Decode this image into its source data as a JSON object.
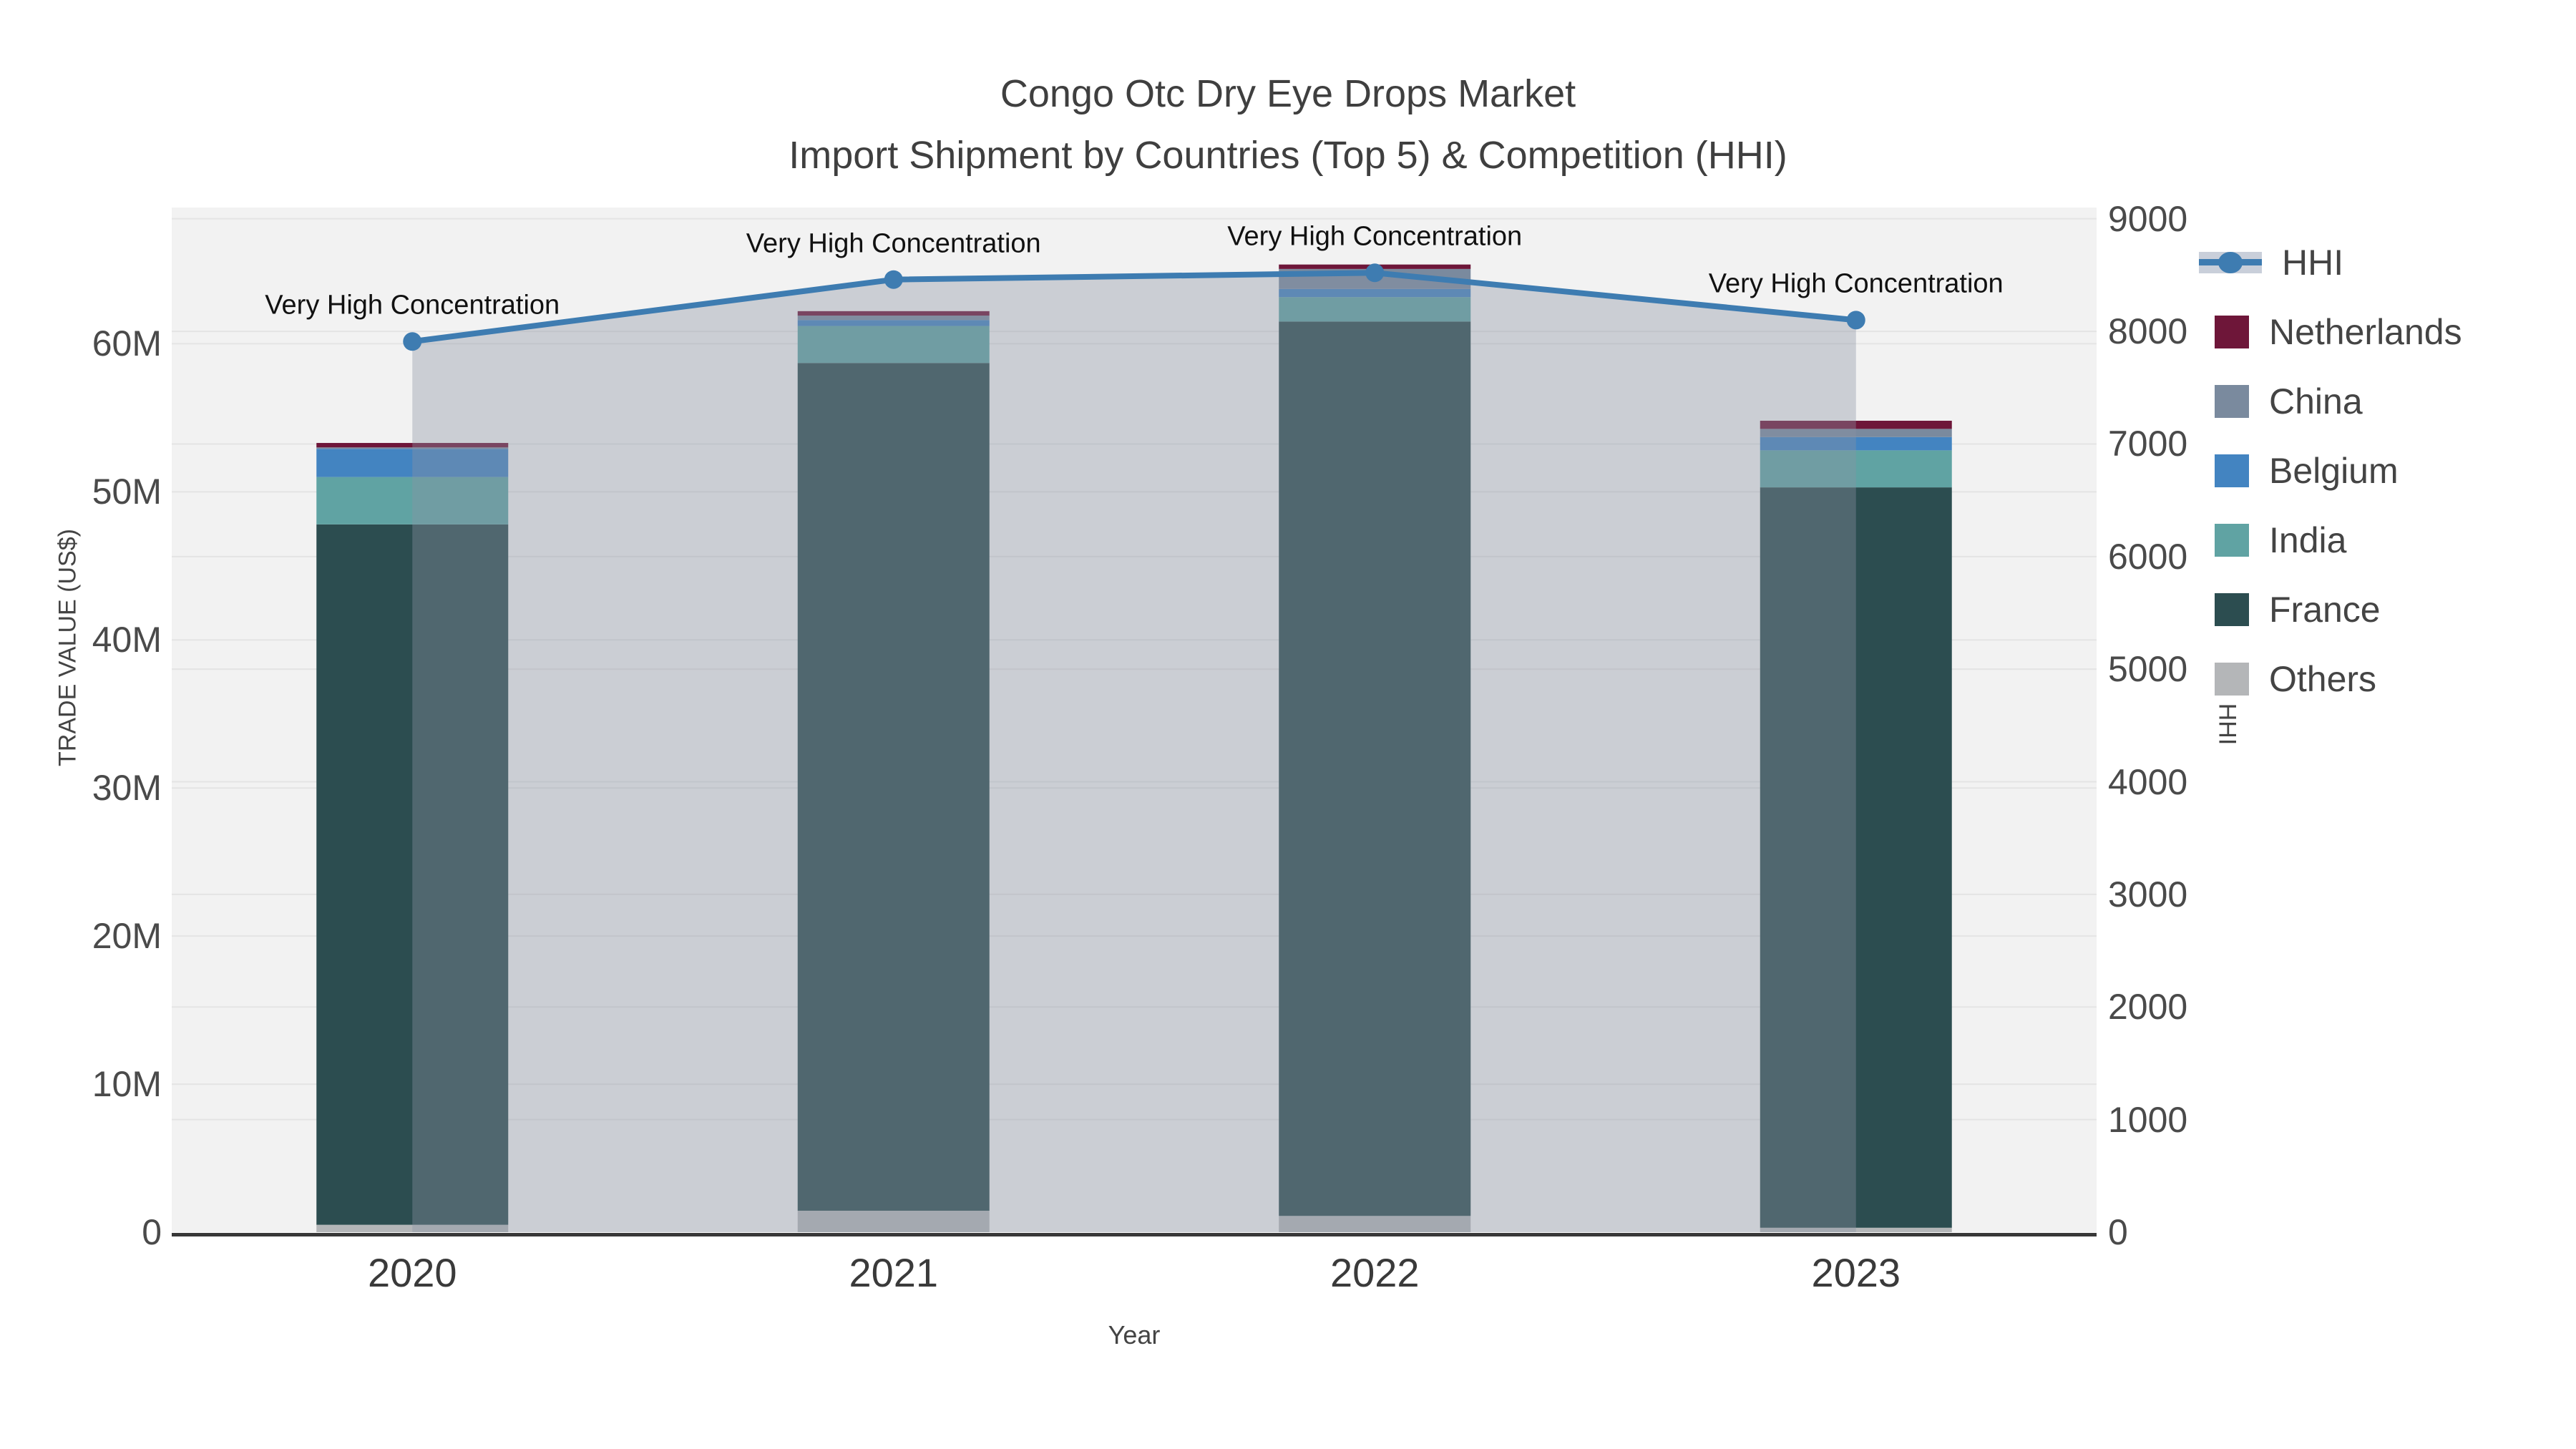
{
  "title": {
    "line1": "Congo Otc Dry Eye Drops Market",
    "line2": "Import Shipment by Countries (Top 5) & Competition (HHI)"
  },
  "legend": {
    "items": [
      {
        "label": "HHI",
        "type": "line",
        "color": "#3E7CB1"
      },
      {
        "label": "Netherlands",
        "type": "swatch",
        "color": "#6E1639"
      },
      {
        "label": "China",
        "type": "swatch",
        "color": "#7A8A9E"
      },
      {
        "label": "Belgium",
        "type": "swatch",
        "color": "#4384C1"
      },
      {
        "label": "India",
        "type": "swatch",
        "color": "#60A3A3"
      },
      {
        "label": "France",
        "type": "swatch",
        "color": "#2C4D50"
      },
      {
        "label": "Others",
        "type": "swatch",
        "color": "#B4B6B8"
      }
    ]
  },
  "chart_data": {
    "type": "bar",
    "subtype": "stacked-bars-with-secondary-line",
    "value_unit": "USD millions",
    "categories": [
      "2020",
      "2021",
      "2022",
      "2023"
    ],
    "series": [
      {
        "name": "Others",
        "color": "#B4B6B8",
        "values": [
          0.5,
          1.45,
          1.1,
          0.3
        ]
      },
      {
        "name": "France",
        "color": "#2C4D50",
        "values": [
          47.3,
          57.25,
          60.4,
          50.0
        ]
      },
      {
        "name": "India",
        "color": "#60A3A3",
        "values": [
          3.2,
          2.5,
          1.65,
          2.5
        ]
      },
      {
        "name": "Belgium",
        "color": "#4384C1",
        "values": [
          1.9,
          0.4,
          0.55,
          0.9
        ]
      },
      {
        "name": "China",
        "color": "#7A8A9E",
        "values": [
          0.1,
          0.3,
          1.35,
          0.55
        ]
      },
      {
        "name": "Netherlands",
        "color": "#6E1639",
        "values": [
          0.3,
          0.3,
          0.3,
          0.55
        ]
      }
    ],
    "totals": [
      53.3,
      62.2,
      65.35,
      54.8
    ],
    "hhi_line": {
      "name": "HHI",
      "color": "#3E7CB1",
      "fill_color": "rgba(140,148,162,0.38)",
      "values": [
        7910,
        8460,
        8520,
        8100
      ]
    },
    "annotations": [
      {
        "category": "2020",
        "text": "Very High Concentration"
      },
      {
        "category": "2021",
        "text": "Very High Concentration"
      },
      {
        "category": "2022",
        "text": "Very High Concentration"
      },
      {
        "category": "2023",
        "text": "Very High Concentration"
      }
    ],
    "x_axis": {
      "label": "Year"
    },
    "y_left": {
      "label": "TRADE VALUE (US$)",
      "ticks": [
        {
          "label": "0",
          "value": 0
        },
        {
          "label": "10M",
          "value": 10
        },
        {
          "label": "20M",
          "value": 20
        },
        {
          "label": "30M",
          "value": 30
        },
        {
          "label": "40M",
          "value": 40
        },
        {
          "label": "50M",
          "value": 50
        },
        {
          "label": "60M",
          "value": 60
        }
      ],
      "range": [
        0,
        69.2
      ]
    },
    "y_right": {
      "label": "HHI",
      "ticks": [
        {
          "label": "0",
          "value": 0
        },
        {
          "label": "1000",
          "value": 1000
        },
        {
          "label": "2000",
          "value": 2000
        },
        {
          "label": "3000",
          "value": 3000
        },
        {
          "label": "4000",
          "value": 4000
        },
        {
          "label": "5000",
          "value": 5000
        },
        {
          "label": "6000",
          "value": 6000
        },
        {
          "label": "7000",
          "value": 7000
        },
        {
          "label": "8000",
          "value": 8000
        },
        {
          "label": "9000",
          "value": 9000
        }
      ],
      "range": [
        0,
        9100
      ]
    },
    "grid": true,
    "legend_position": "right",
    "plot_bg": "#f2f2f2"
  }
}
